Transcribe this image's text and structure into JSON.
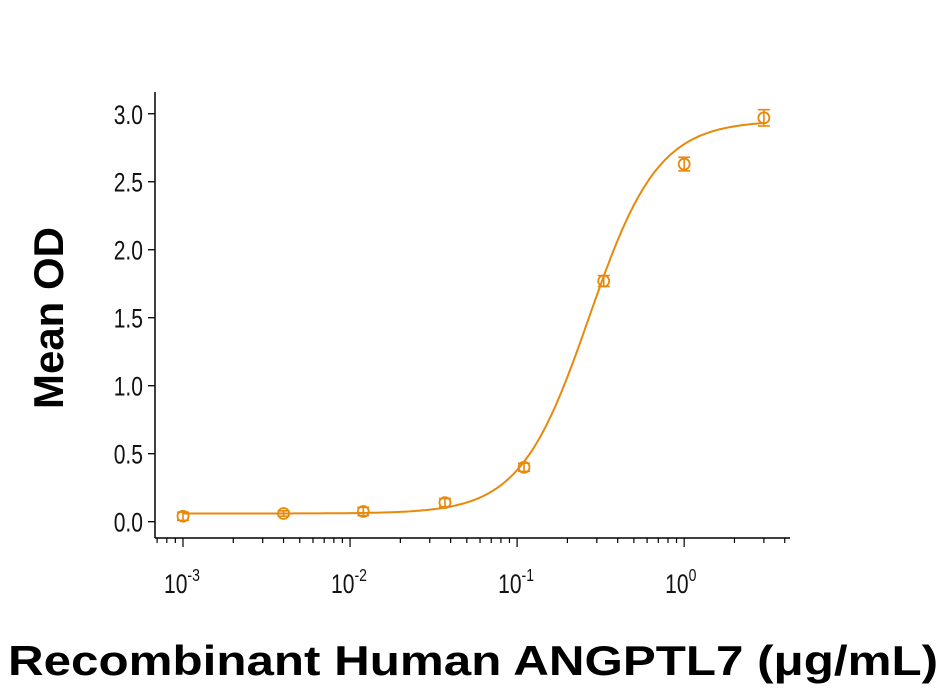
{
  "chart_data": {
    "type": "scatter",
    "title": "",
    "xlabel": "Recombinant Human ANGPTL7 (μg/mL)",
    "ylabel": "Mean OD",
    "x_scale": "log",
    "xlim": [
      0.00068,
      4.3
    ],
    "ylim": [
      -0.12,
      3.16
    ],
    "grid": false,
    "color": "#E8890C",
    "x_ticks": [
      {
        "value": 0.001,
        "base": "10",
        "exp": "-3"
      },
      {
        "value": 0.01,
        "base": "10",
        "exp": "-2"
      },
      {
        "value": 0.1,
        "base": "10",
        "exp": "-1"
      },
      {
        "value": 1,
        "base": "10",
        "exp": "0"
      }
    ],
    "y_ticks": [
      "0.0",
      "0.5",
      "1.0",
      "1.5",
      "2.0",
      "2.5",
      "3.0"
    ],
    "series": [
      {
        "x": [
          0.001,
          0.004,
          0.012,
          0.037,
          0.11,
          0.33,
          1.0,
          3.0
        ],
        "y": [
          0.04,
          0.06,
          0.075,
          0.14,
          0.4,
          1.77,
          2.63,
          2.97
        ],
        "error": [
          0.03,
          0.02,
          0.03,
          0.03,
          0.03,
          0.04,
          0.05,
          0.06
        ]
      }
    ],
    "fit_curve": {
      "model": "4PL",
      "bottom": 0.06,
      "top": 2.95,
      "ec50": 0.27,
      "hill": 2.1
    }
  }
}
